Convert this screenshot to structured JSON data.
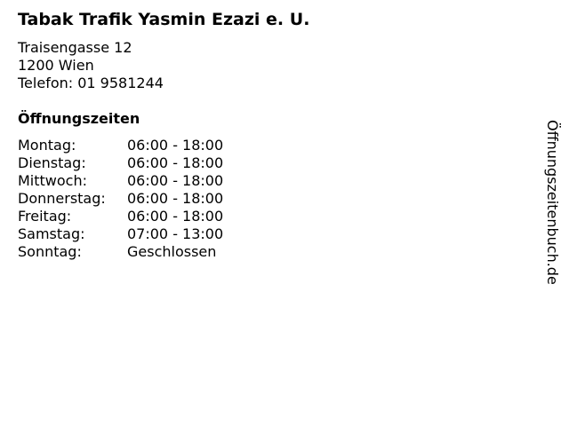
{
  "title": "Tabak Trafik Yasmin Ezazi e. U.",
  "address": {
    "street": "Traisengasse 12",
    "city": "1200 Wien",
    "phone": "Telefon: 01 9581244"
  },
  "hours_heading": "Öffnungszeiten",
  "hours": [
    {
      "day": "Montag:",
      "time": "06:00 - 18:00"
    },
    {
      "day": "Dienstag:",
      "time": "06:00 - 18:00"
    },
    {
      "day": "Mittwoch:",
      "time": "06:00 - 18:00"
    },
    {
      "day": "Donnerstag:",
      "time": "06:00 - 18:00"
    },
    {
      "day": "Freitag:",
      "time": "06:00 - 18:00"
    },
    {
      "day": "Samstag:",
      "time": "07:00 - 13:00"
    },
    {
      "day": "Sonntag:",
      "time": "Geschlossen"
    }
  ],
  "watermark": "Öffnungszeitenbuch.de"
}
